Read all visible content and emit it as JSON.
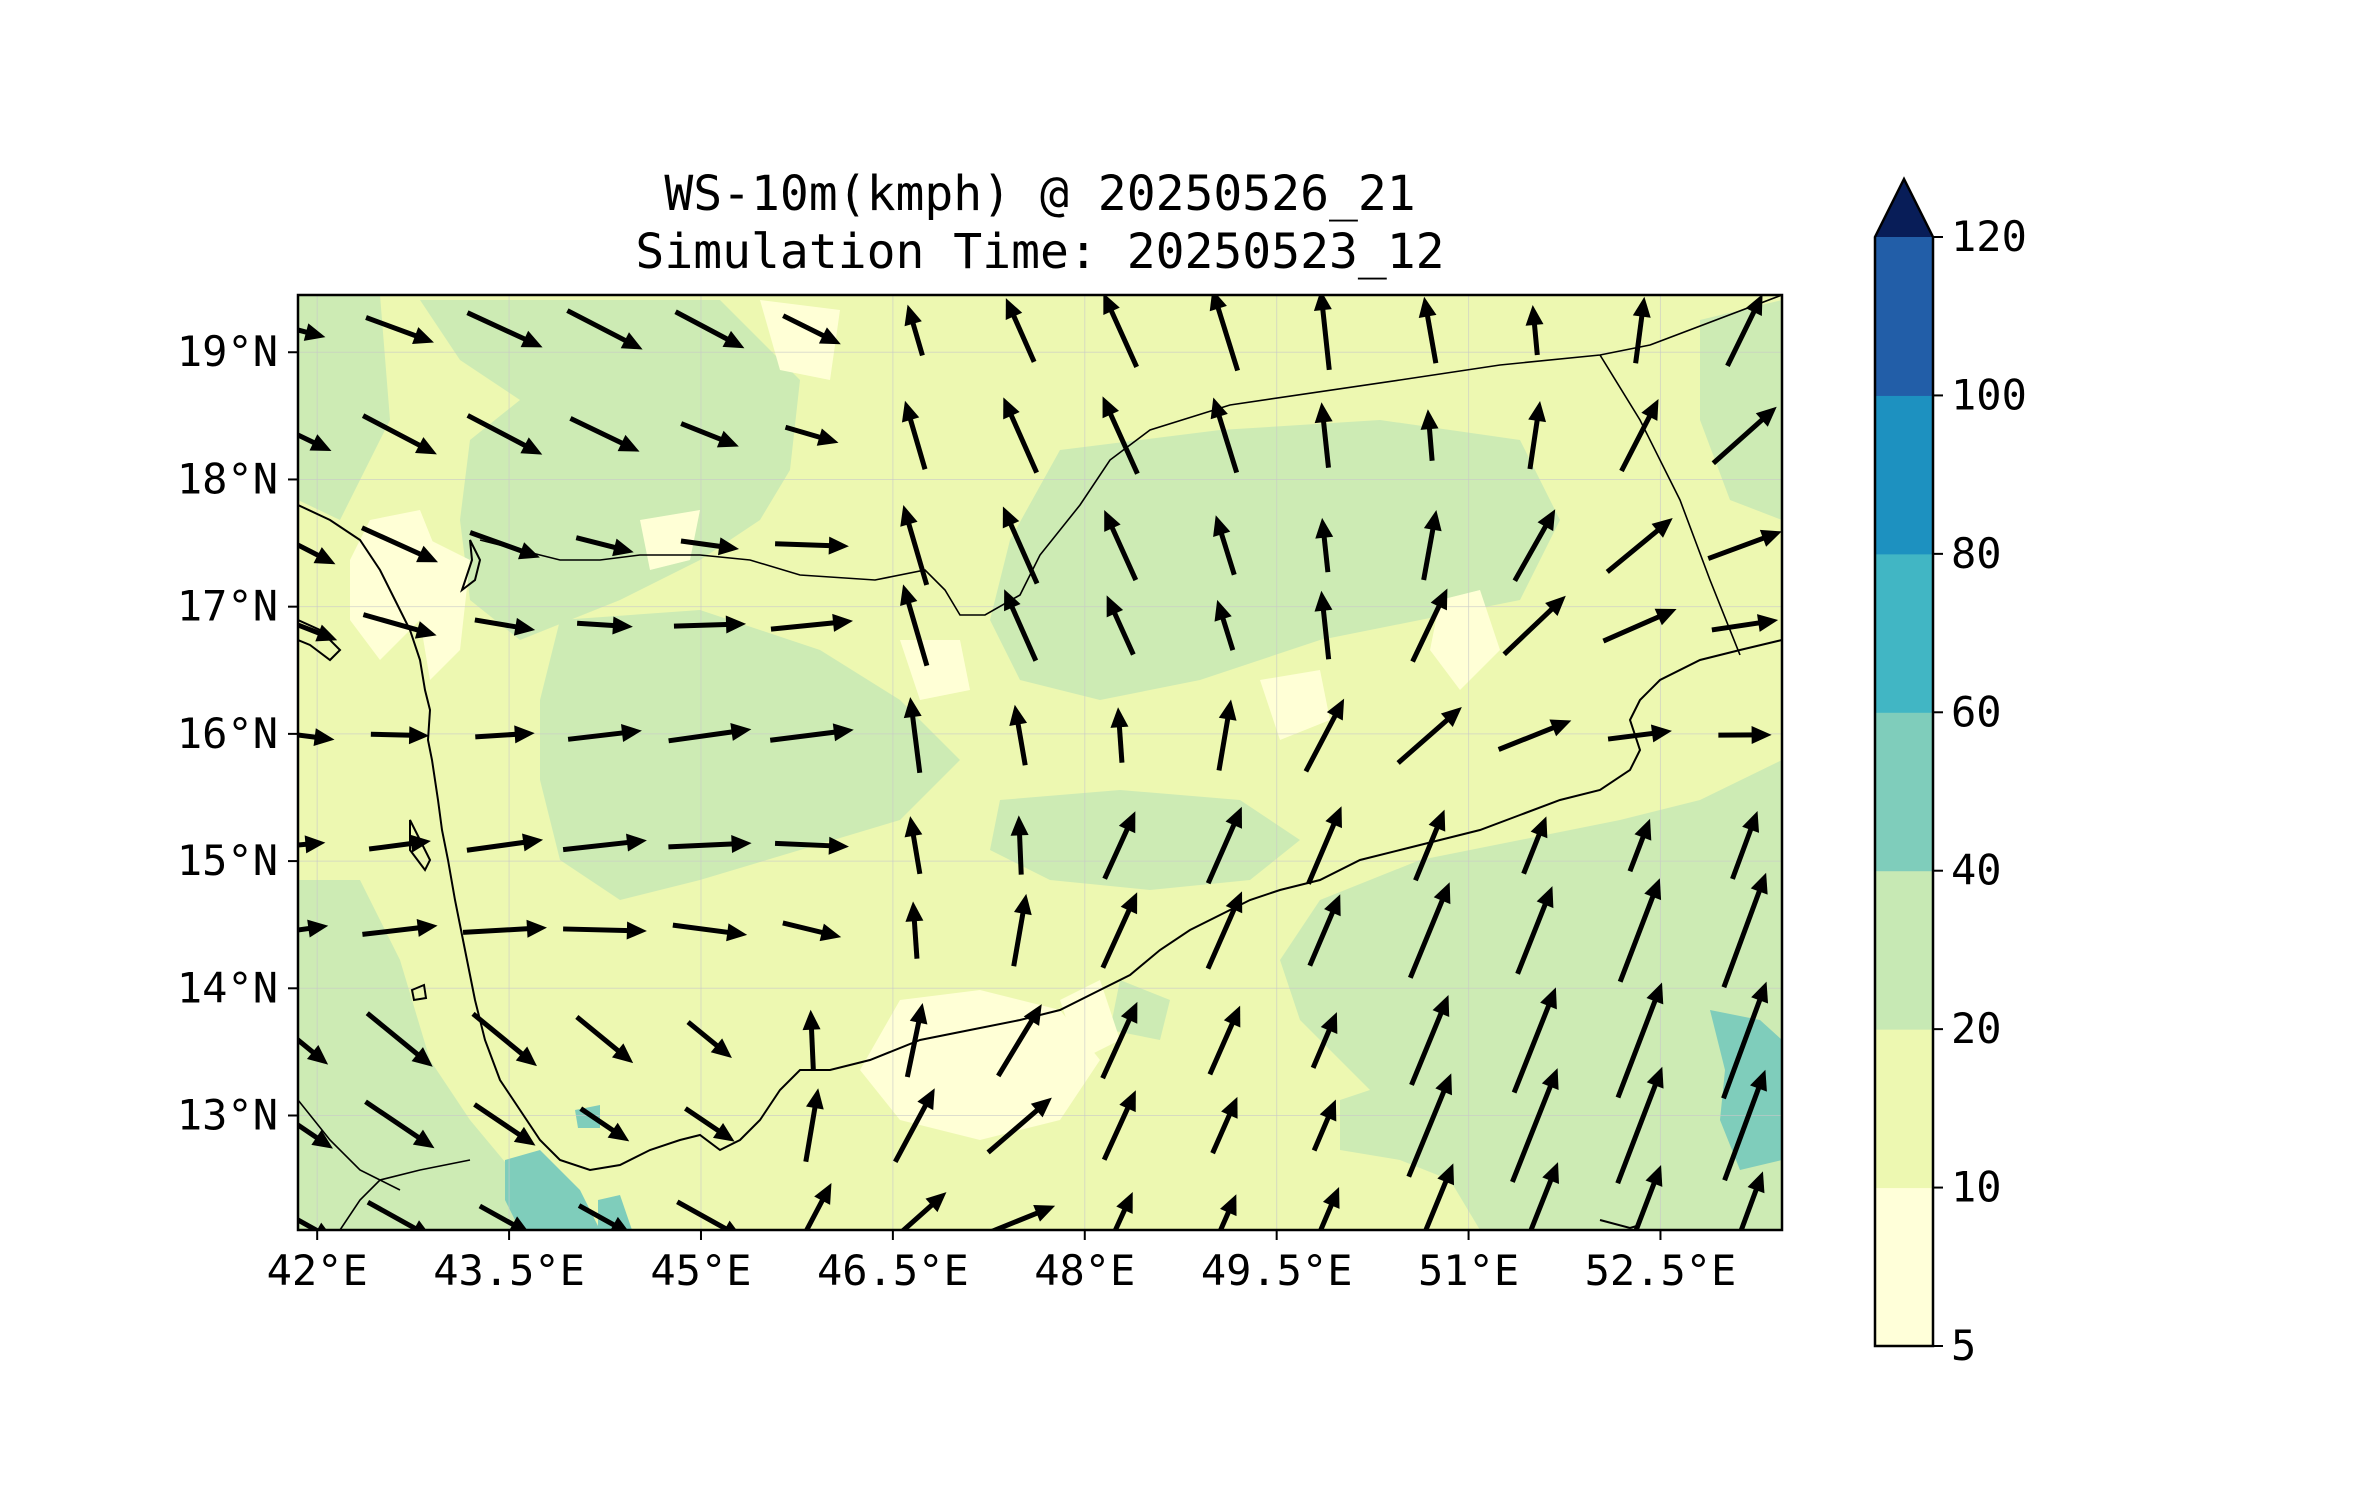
{
  "title_line1": "WS-10m(kmph) @ 20250526_21",
  "title_line2": "Simulation Time: 20250523_12",
  "map": {
    "lon_range": [
      41.85,
      53.45
    ],
    "lat_range": [
      12.1,
      19.45
    ],
    "lon_ticks": [
      42,
      43.5,
      45,
      46.5,
      48,
      49.5,
      51,
      52.5
    ],
    "lon_tick_labels": [
      "42°E",
      "43.5°E",
      "45°E",
      "46.5°E",
      "48°E",
      "49.5°E",
      "51°E",
      "52.5°E"
    ],
    "lat_ticks": [
      19,
      18,
      17,
      16,
      15,
      14,
      13
    ],
    "lat_tick_labels": [
      "19°N",
      "18°N",
      "17°N",
      "16°N",
      "15°N",
      "14°N",
      "13°N"
    ],
    "grid": true,
    "field": "10 m wind speed (kmph), filled contours with wind arrows"
  },
  "colorbar": {
    "levels": [
      5,
      10,
      20,
      40,
      60,
      80,
      100,
      120
    ],
    "labels": [
      "5",
      "10",
      "20",
      "40",
      "60",
      "80",
      "100",
      "120"
    ],
    "colors": [
      "#ffffd9",
      "#edf8b1",
      "#c7e9b4",
      "#7fcdbb",
      "#41b6c4",
      "#1d91c0",
      "#225ea8",
      "#253494"
    ],
    "extend_color": "#081d58",
    "extend": "max"
  }
}
